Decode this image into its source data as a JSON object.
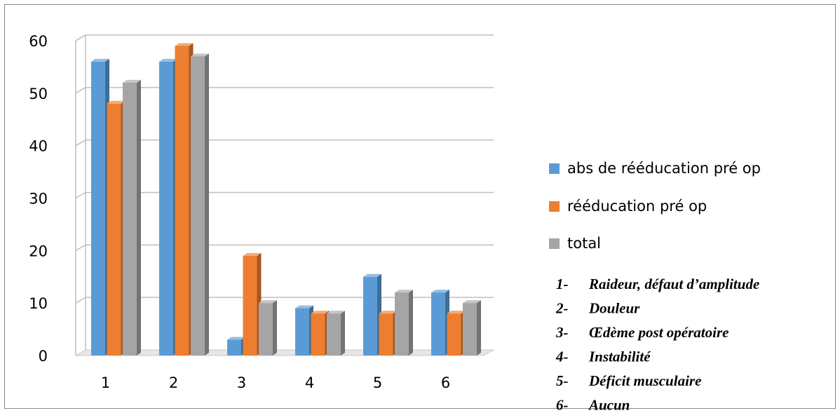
{
  "chart_data": {
    "type": "bar",
    "categories": [
      "1",
      "2",
      "3",
      "4",
      "5",
      "6"
    ],
    "series": [
      {
        "name": "abs de rééducation pré op",
        "values": [
          56,
          56,
          3,
          9,
          15,
          12
        ],
        "color": "#5b9bd5"
      },
      {
        "name": "rééducation pré op",
        "values": [
          48,
          59,
          19,
          8,
          8,
          8
        ],
        "color": "#ed7d31"
      },
      {
        "name": "total",
        "values": [
          52,
          57,
          10,
          8,
          12,
          10
        ],
        "color": "#a5a5a5"
      }
    ],
    "ylim": [
      0,
      60
    ],
    "yticks": [
      "0",
      "10",
      "20",
      "30",
      "40",
      "50",
      "60"
    ],
    "grid": true,
    "legend_position": "right",
    "notes": [
      {
        "num": "1-",
        "text": "Raideur, défaut d’amplitude"
      },
      {
        "num": "2-",
        "text": "Douleur"
      },
      {
        "num": "3-",
        "text": "Œdème post opératoire"
      },
      {
        "num": "4-",
        "text": "Instabilité"
      },
      {
        "num": "5-",
        "text": "Déficit musculaire"
      },
      {
        "num": "6-",
        "text": "Aucun"
      }
    ]
  }
}
